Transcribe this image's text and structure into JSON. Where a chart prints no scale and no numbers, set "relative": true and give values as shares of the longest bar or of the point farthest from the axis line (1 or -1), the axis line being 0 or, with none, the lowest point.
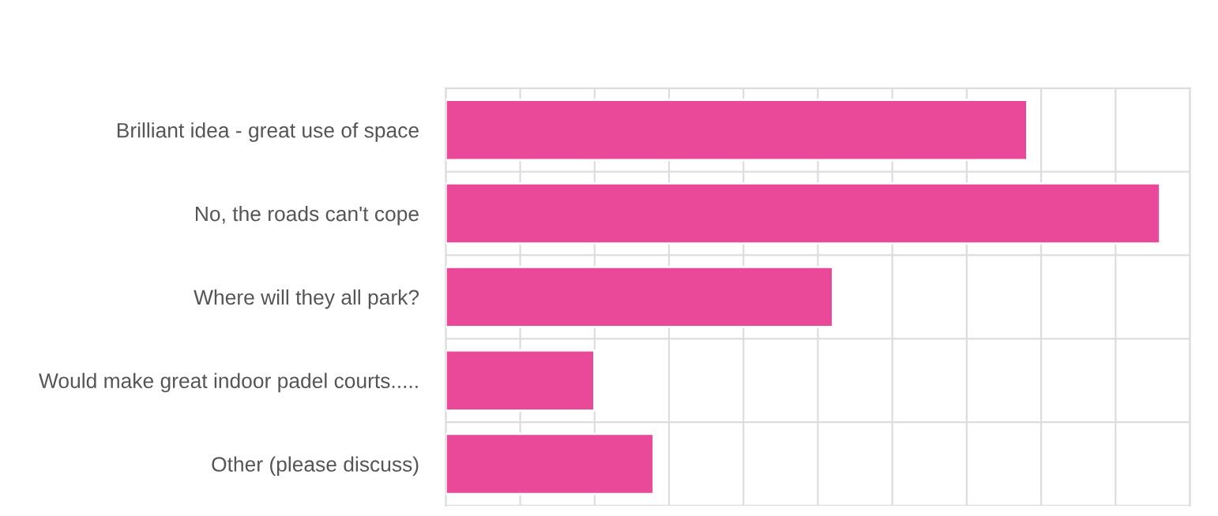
{
  "chart_data": {
    "type": "bar",
    "orientation": "horizontal",
    "relative": true,
    "grid": true,
    "categories": [
      "Brilliant idea - great use of space",
      "No, the roads can't cope",
      "Where will they all park?",
      "Would make great indoor padel courts.....",
      "Other (please discuss)"
    ],
    "values": [
      0.814,
      1,
      0.542,
      0.208,
      0.291
    ],
    "color": "#ea4899"
  }
}
